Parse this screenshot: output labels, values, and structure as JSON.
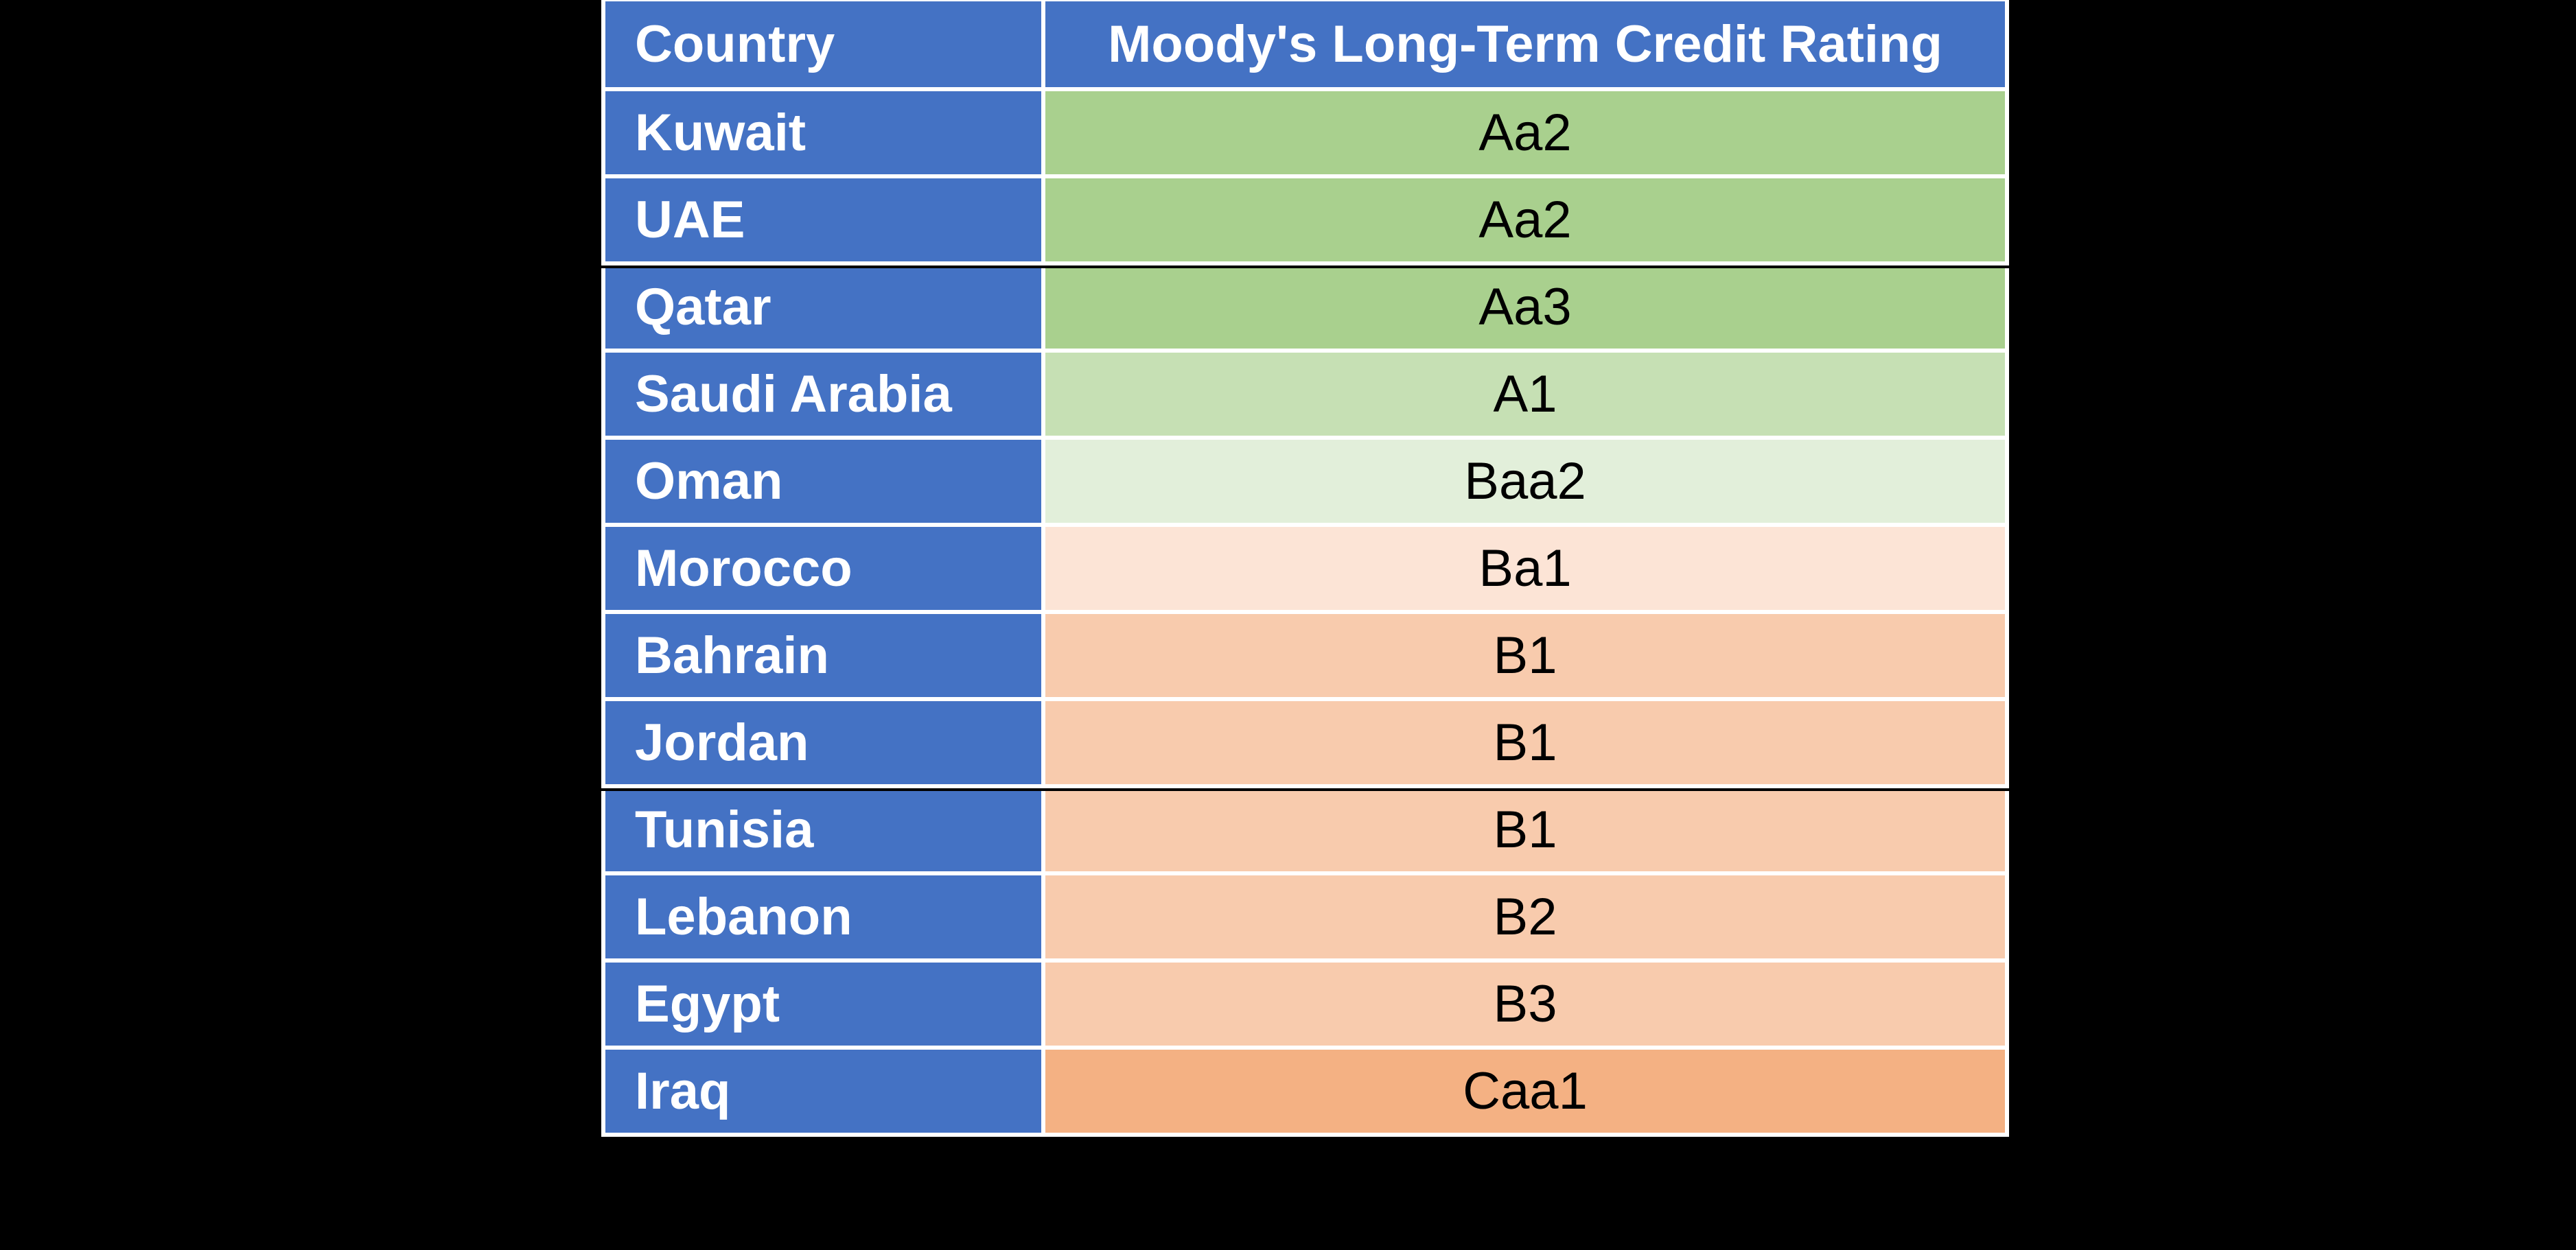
{
  "page": {
    "background_color": "#000000"
  },
  "table": {
    "columns": [
      "Country",
      "Moody's Long-Term Credit Rating"
    ],
    "header_bg": "#4472C4",
    "header_text_color": "#FFFFFF",
    "country_bg": "#4472C4",
    "country_text_color": "#FFFFFF",
    "rating_text_color": "#000000",
    "grid_color": "#FFFFFF",
    "separator_color": "#000000",
    "rows": [
      {
        "country": "Kuwait",
        "rating": "Aa2",
        "rating_bg": "#A9D08E",
        "separator_above": false
      },
      {
        "country": "UAE",
        "rating": "Aa2",
        "rating_bg": "#A9D08E",
        "separator_above": false
      },
      {
        "country": "Qatar",
        "rating": "Aa3",
        "rating_bg": "#A9D08E",
        "separator_above": true
      },
      {
        "country": "Saudi Arabia",
        "rating": "A1",
        "rating_bg": "#C6E0B4",
        "separator_above": false
      },
      {
        "country": "Oman",
        "rating": "Baa2",
        "rating_bg": "#E2EFDA",
        "separator_above": false
      },
      {
        "country": "Morocco",
        "rating": "Ba1",
        "rating_bg": "#FCE4D6",
        "separator_above": false
      },
      {
        "country": "Bahrain",
        "rating": "B1",
        "rating_bg": "#F8CBAD",
        "separator_above": false
      },
      {
        "country": "Jordan",
        "rating": "B1",
        "rating_bg": "#F8CBAD",
        "separator_above": false
      },
      {
        "country": "Tunisia",
        "rating": "B1",
        "rating_bg": "#F8CBAD",
        "separator_above": true
      },
      {
        "country": "Lebanon",
        "rating": "B2",
        "rating_bg": "#F8CBAD",
        "separator_above": false
      },
      {
        "country": "Egypt",
        "rating": "B3",
        "rating_bg": "#F8CBAD",
        "separator_above": false
      },
      {
        "country": "Iraq",
        "rating": "Caa1",
        "rating_bg": "#F4B183",
        "separator_above": false
      }
    ]
  },
  "chart_data": {
    "type": "table",
    "title": "Moody's Long-Term Credit Rating",
    "columns": [
      "Country",
      "Moody's Long-Term Credit Rating"
    ],
    "rows": [
      [
        "Kuwait",
        "Aa2"
      ],
      [
        "UAE",
        "Aa2"
      ],
      [
        "Qatar",
        "Aa3"
      ],
      [
        "Saudi Arabia",
        "A1"
      ],
      [
        "Oman",
        "Baa2"
      ],
      [
        "Morocco",
        "Ba1"
      ],
      [
        "Bahrain",
        "B1"
      ],
      [
        "Jordan",
        "B1"
      ],
      [
        "Tunisia",
        "B1"
      ],
      [
        "Lebanon",
        "B2"
      ],
      [
        "Egypt",
        "B3"
      ],
      [
        "Iraq",
        "Caa1"
      ]
    ],
    "color_coding": {
      "Aa2_Aa3": "#A9D08E",
      "A1": "#C6E0B4",
      "Baa2": "#E2EFDA",
      "Ba1": "#FCE4D6",
      "B1_B2_B3": "#F8CBAD",
      "Caa1": "#F4B183"
    },
    "layout_hints": {
      "header_style": "blue fill, white bold text",
      "country_column_style": "blue fill, white bold text, left-aligned",
      "rating_column_style": "color-scale fill green-to-orange, black text, centered",
      "gridlines": "white, 6px",
      "black_separator_lines_above_rows": [
        "Qatar",
        "Tunisia"
      ]
    }
  }
}
